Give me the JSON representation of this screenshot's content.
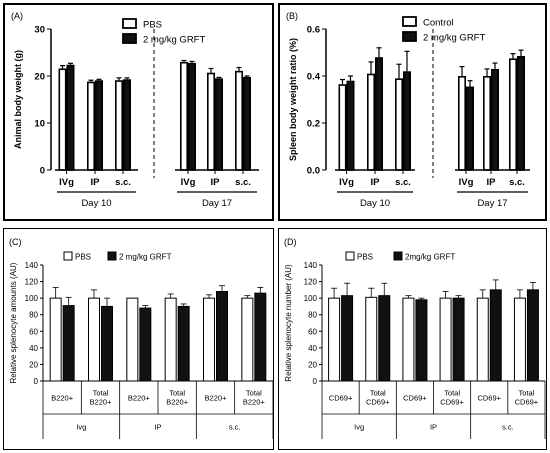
{
  "chart_data": [
    {
      "panel": "(A)",
      "type": "bar",
      "ylabel": "Animal body weight (g)",
      "ylim": [
        0,
        30
      ],
      "yticks": [
        0,
        10,
        20,
        30
      ],
      "legend": {
        "placement": "top",
        "entries": [
          "PBS",
          "2 mg/kg GRFT"
        ]
      },
      "groups": [
        {
          "label": "Day 10",
          "categories": [
            "IVg",
            "IP",
            "s.c."
          ]
        },
        {
          "label": "Day 17",
          "categories": [
            "IVg",
            "IP",
            "s.c."
          ]
        }
      ],
      "series": [
        {
          "name": "PBS",
          "color": "#ffffff",
          "values": [
            21.6,
            18.8,
            19.1,
            23.0,
            20.7,
            21.1
          ],
          "errors": [
            0.6,
            0.3,
            0.5,
            0.3,
            0.9,
            0.7
          ]
        },
        {
          "name": "2 mg/kg GRFT",
          "color": "#111111",
          "values": [
            22.4,
            19.1,
            19.3,
            22.8,
            19.5,
            19.8
          ],
          "errors": [
            0.3,
            0.2,
            0.3,
            0.3,
            0.2,
            0.2
          ]
        }
      ],
      "divider": true
    },
    {
      "panel": "(B)",
      "type": "bar",
      "ylabel": "Spleen  body weight ratio (%)",
      "ylim": [
        0,
        0.6
      ],
      "yticks": [
        "0.0",
        "0.2",
        "0.4",
        "0.6"
      ],
      "legend": {
        "placement": "top",
        "entries": [
          "Control",
          "2 mg/kg GRFT"
        ]
      },
      "groups": [
        {
          "label": "Day 10",
          "categories": [
            "IVg",
            "IP",
            "s.c."
          ]
        },
        {
          "label": "Day 17",
          "categories": [
            "IVg",
            "IP",
            "s.c."
          ]
        }
      ],
      "series": [
        {
          "name": "Control",
          "color": "#ffffff",
          "values": [
            0.365,
            0.41,
            0.39,
            0.4,
            0.4,
            0.475
          ],
          "errors": [
            0.02,
            0.05,
            0.06,
            0.04,
            0.03,
            0.02
          ]
        },
        {
          "name": "2 mg/kg GRFT",
          "color": "#111111",
          "values": [
            0.38,
            0.48,
            0.42,
            0.355,
            0.43,
            0.485
          ],
          "errors": [
            0.02,
            0.04,
            0.085,
            0.025,
            0.025,
            0.025
          ]
        }
      ],
      "divider": true
    },
    {
      "panel": "(C)",
      "type": "bar",
      "ylabel": "Relative splenocyte amounts (AU)",
      "ylim": [
        0,
        140
      ],
      "yticks": [
        0,
        20,
        40,
        60,
        80,
        100,
        120,
        140
      ],
      "legend": {
        "placement": "top",
        "entries": [
          "PBS",
          "2 mg/kg GRFT"
        ]
      },
      "table_categories": [
        [
          "B220+"
        ],
        [
          "Total",
          "B220+"
        ],
        [
          "B220+"
        ],
        [
          "Total",
          "B220+"
        ],
        [
          "B220+"
        ],
        [
          "Total",
          "B220+"
        ]
      ],
      "table_groups": [
        "Ivg",
        "IP",
        "s.c."
      ],
      "series": [
        {
          "name": "PBS",
          "color": "#ffffff",
          "values": [
            100,
            100,
            100,
            100,
            100,
            100
          ],
          "errors": [
            13,
            10,
            0,
            5,
            4,
            3
          ]
        },
        {
          "name": "2 mg/kg GRFT",
          "color": "#111111",
          "values": [
            91,
            90,
            88,
            90,
            108,
            106
          ],
          "errors": [
            10,
            10,
            3,
            3,
            7,
            7
          ]
        }
      ]
    },
    {
      "panel": "(D)",
      "type": "bar",
      "ylabel": "Relative splenocyte number (AU)",
      "ylim": [
        0,
        140
      ],
      "yticks": [
        0,
        20,
        40,
        60,
        80,
        100,
        120,
        140
      ],
      "legend": {
        "placement": "top",
        "entries": [
          "PBS",
          "2mg/kg GRFT"
        ]
      },
      "table_categories": [
        [
          "CD69+"
        ],
        [
          "Total",
          "CD69+"
        ],
        [
          "CD69+"
        ],
        [
          "Total",
          "CD69+"
        ],
        [
          "CD69+"
        ],
        [
          "Total",
          "CD69+"
        ]
      ],
      "table_groups": [
        "Ivg",
        "IP",
        "s.c."
      ],
      "series": [
        {
          "name": "PBS",
          "color": "#ffffff",
          "values": [
            100,
            101,
            100,
            100,
            100,
            100
          ],
          "errors": [
            12,
            11,
            3,
            8,
            10,
            10
          ]
        },
        {
          "name": "2mg/kg GRFT",
          "color": "#111111",
          "values": [
            103,
            103,
            98,
            100,
            110,
            110
          ],
          "errors": [
            15,
            15,
            2,
            3,
            12,
            9
          ]
        }
      ]
    }
  ]
}
